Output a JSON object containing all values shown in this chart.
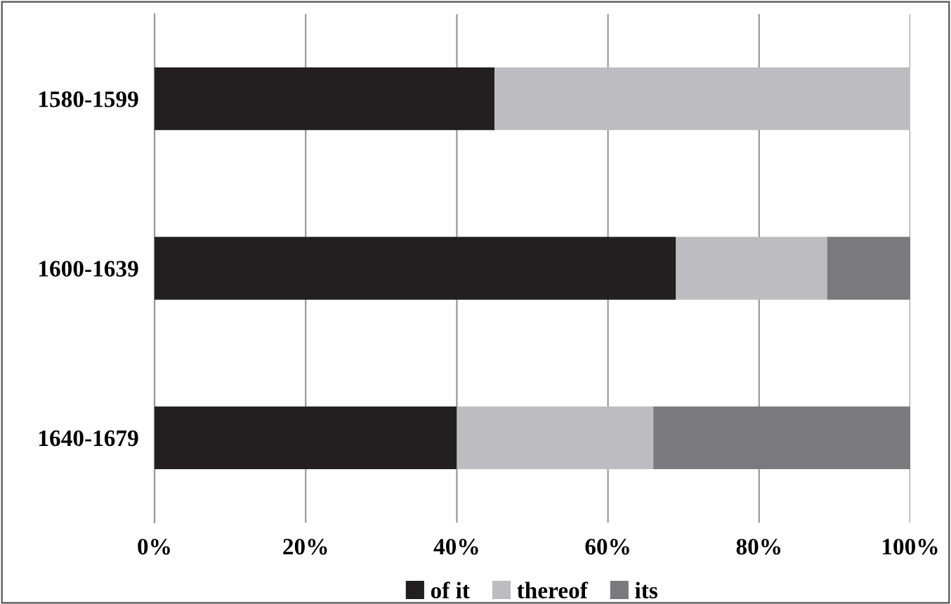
{
  "chart_data": {
    "type": "bar",
    "orientation": "horizontal",
    "stacked": true,
    "categories": [
      "1580-1599",
      "1600-1639",
      "1640-1679"
    ],
    "series": [
      {
        "name": "of it",
        "color": "#231f20",
        "values": [
          45,
          69,
          40
        ]
      },
      {
        "name": "thereof",
        "color": "#bdbdc1",
        "values": [
          55,
          20,
          26
        ]
      },
      {
        "name": "its",
        "color": "#7a7a7e",
        "values": [
          null,
          11,
          34
        ]
      }
    ],
    "xlim": [
      0,
      100
    ],
    "xticks": [
      {
        "value": 0,
        "label": "0%"
      },
      {
        "value": 20,
        "label": "20%"
      },
      {
        "value": 40,
        "label": "40%"
      },
      {
        "value": 60,
        "label": "60%"
      },
      {
        "value": 80,
        "label": "80%"
      },
      {
        "value": 100,
        "label": "100%"
      }
    ],
    "grid": "x",
    "legend": "bottom"
  }
}
